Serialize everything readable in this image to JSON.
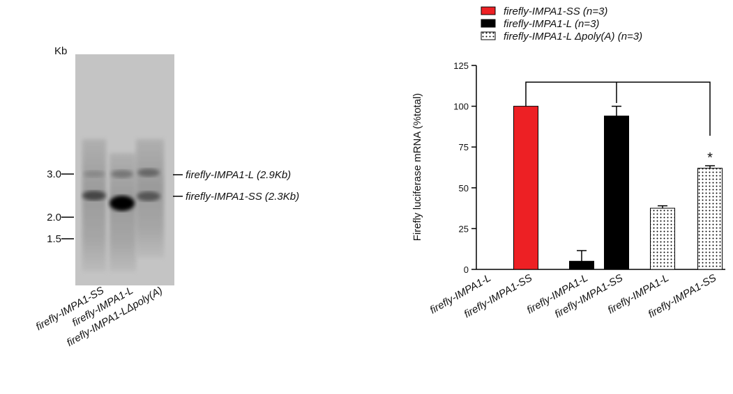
{
  "blot": {
    "unit": "Kb",
    "markers": [
      "3.0",
      "2.0",
      "1.5"
    ],
    "bands": [
      "firefly-IMPA1-L (2.9Kb)",
      "firefly-IMPA1-SS (2.3Kb)"
    ],
    "lanes": [
      "firefly-IMPA1-SS",
      "firefly-IMPA1-L",
      "firefly-IMPA1-LΔpoly(A)"
    ]
  },
  "chart_data": {
    "type": "bar",
    "y_label": "Firefly luciferase mRNA (%total)",
    "categories": [
      "firefly-IMPA1-L",
      "firefly-IMPA1-SS",
      "firefly-IMPA1-L",
      "firefly-IMPA1-SS",
      "firefly-IMPA1-L",
      "firefly-IMPA1-SS"
    ],
    "series": [
      {
        "name": "firefly-IMPA1-SS (n=3)",
        "color": "#ed2024",
        "values": [
          0,
          100,
          null,
          null,
          null,
          null
        ],
        "errors": [
          null,
          null,
          null,
          null,
          null,
          null
        ]
      },
      {
        "name": "firefly-IMPA1-L (n=3)",
        "color": "#000000",
        "values": [
          null,
          null,
          5,
          94,
          null,
          null
        ],
        "errors": [
          null,
          null,
          6.5,
          6,
          null,
          null
        ]
      },
      {
        "name": "firefly-IMPA1-L Δpoly(A) (n=3)",
        "color": "dotted",
        "values": [
          null,
          null,
          null,
          null,
          37.5,
          62
        ],
        "errors": [
          null,
          null,
          null,
          null,
          1.5,
          1.5
        ]
      }
    ],
    "annotation": "*",
    "ylim": [
      0,
      125
    ],
    "yticks": [
      0,
      25,
      50,
      75,
      100,
      125
    ]
  }
}
